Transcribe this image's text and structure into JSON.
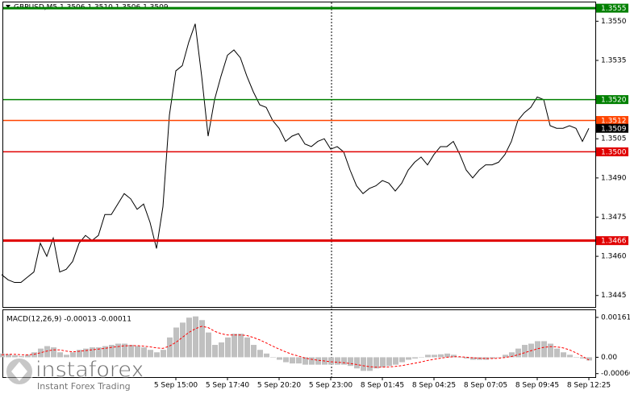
{
  "chart_data": [
    {
      "type": "line",
      "title": "GBPUSD,M5  1.3506 1.3510 1.3506 1.3509",
      "color": "#000000",
      "categories": [
        null,
        null,
        null,
        null,
        null,
        null,
        null,
        null,
        null,
        null,
        null,
        null,
        null,
        null,
        null,
        null,
        null,
        null,
        null,
        null,
        null,
        null,
        null,
        null,
        null,
        null,
        null,
        "5 Sep 15:00",
        null,
        null,
        null,
        null,
        null,
        null,
        null,
        "5 Sep 17:40",
        null,
        null,
        null,
        null,
        null,
        null,
        null,
        "5 Sep 20:20",
        null,
        null,
        null,
        null,
        null,
        null,
        null,
        "5 Sep 23:00",
        null,
        null,
        null,
        null,
        null,
        null,
        null,
        "8 Sep 01:45",
        null,
        null,
        null,
        null,
        null,
        null,
        null,
        "8 Sep 04:25",
        null,
        null,
        null,
        null,
        null,
        null,
        null,
        "8 Sep 07:05",
        null,
        null,
        null,
        null,
        null,
        null,
        null,
        "8 Sep 09:45",
        null,
        null,
        null,
        null,
        null,
        null,
        null,
        "8 Sep 12:25"
      ],
      "values": [
        1.3453,
        1.3451,
        1.345,
        1.345,
        1.3452,
        1.3454,
        1.3465,
        1.346,
        1.3467,
        1.3454,
        1.3455,
        1.3458,
        1.3465,
        1.3468,
        1.3466,
        1.3468,
        1.3476,
        1.3476,
        1.348,
        1.3484,
        1.3482,
        1.3478,
        1.348,
        1.3473,
        1.3463,
        1.3479,
        1.3514,
        1.3531,
        1.3533,
        1.3542,
        1.3549,
        1.3529,
        1.3506,
        1.352,
        1.3529,
        1.3537,
        1.3539,
        1.3536,
        1.3529,
        1.3523,
        1.3518,
        1.3517,
        1.3512,
        1.3509,
        1.3504,
        1.3506,
        1.3507,
        1.3503,
        1.3502,
        1.3504,
        1.3505,
        1.3501,
        1.3502,
        1.35,
        1.3493,
        1.3487,
        1.3484,
        1.3486,
        1.3487,
        1.3489,
        1.3488,
        1.3485,
        1.3488,
        1.3493,
        1.3496,
        1.3498,
        1.3495,
        1.3499,
        1.3502,
        1.3502,
        1.3504,
        1.3499,
        1.3493,
        1.349,
        1.3493,
        1.3495,
        1.3495,
        1.3496,
        1.3499,
        1.3504,
        1.3512,
        1.3515,
        1.3517,
        1.3521,
        1.352,
        1.351,
        1.3509,
        1.3509,
        1.351,
        1.3509,
        1.3504,
        1.3509
      ],
      "ylim": [
        1.34406,
        1.35572
      ],
      "yticks": [
        {
          "value": 1.355,
          "label": "1.3550"
        },
        1.3535,
        1.3505,
        {
          "value": 1.349,
          "label": "1.3490"
        },
        1.3475,
        {
          "value": 1.346,
          "label": "1.3460"
        },
        1.3445
      ],
      "levels": [
        {
          "value": 1.3555,
          "label": "1.3555",
          "color": "#008000",
          "thick": true,
          "line": true
        },
        {
          "value": 1.352,
          "label": "1.3520",
          "color": "#008000",
          "thick": false,
          "line": true
        },
        {
          "value": 1.3512,
          "label": "1.3512",
          "color": "#ff4500",
          "thick": false,
          "line": true
        },
        {
          "value": 1.3509,
          "label": "1.3509",
          "color": "#000000",
          "thick": false,
          "line": false
        },
        {
          "value": 1.35,
          "label": "1.3500",
          "color": "#e00000",
          "thick": false,
          "line": true
        },
        {
          "value": 1.3466,
          "label": "1.3466",
          "color": "#e00000",
          "thick": true,
          "line": true
        }
      ],
      "watermark": {
        "brand": "instaforex",
        "tagline": "Instant Forex Trading"
      }
    },
    {
      "type": "bar",
      "title": "MACD(12,26,9) -0.00013 -0.00011",
      "color": "#c0c0c0",
      "values": [
        0.00015,
        0.00012,
        8e-05,
        5e-05,
        0.0001,
        0.0002,
        0.00035,
        0.00045,
        0.0004,
        0.0002,
        0.0001,
        0.0002,
        0.0003,
        0.00035,
        0.0004,
        0.0004,
        0.00045,
        0.0005,
        0.00055,
        0.00055,
        0.0005,
        0.00045,
        0.0004,
        0.0003,
        0.0002,
        0.0003,
        0.0008,
        0.0012,
        0.0014,
        0.0016,
        0.00165,
        0.0015,
        0.001,
        0.0005,
        0.0006,
        0.0008,
        0.00095,
        0.00095,
        0.0008,
        0.0005,
        0.0003,
        0.00015,
        0,
        -0.0001,
        -0.0002,
        -0.00025,
        -0.00025,
        -0.0003,
        -0.0003,
        -0.0003,
        -0.0003,
        -0.0003,
        -0.0003,
        -0.0003,
        -0.00035,
        -0.00045,
        -0.00055,
        -0.00055,
        -0.00045,
        -0.0004,
        -0.00035,
        -0.0003,
        -0.0002,
        -0.0001,
        -5e-05,
        0,
        0.0001,
        0.0001,
        0.00012,
        0.00015,
        0.0001,
        0,
        -5e-05,
        -0.0001,
        -0.0001,
        -0.0001,
        -5e-05,
        0,
        0.0001,
        0.0002,
        0.00035,
        0.0005,
        0.00055,
        0.00065,
        0.00065,
        0.00055,
        0.00035,
        0.0002,
        0.0001,
        0,
        -5e-05,
        -0.00013
      ],
      "signal": {
        "color": "#ff0000",
        "values": [
          0.0001,
          0.00012,
          0.00012,
          0.0001,
          0.0001,
          0.00012,
          0.00018,
          0.00025,
          0.0003,
          0.0003,
          0.00025,
          0.00022,
          0.00024,
          0.00027,
          0.0003,
          0.00033,
          0.00036,
          0.0004,
          0.00043,
          0.00046,
          0.00047,
          0.00047,
          0.00045,
          0.00042,
          0.00038,
          0.00036,
          0.00045,
          0.0006,
          0.0008,
          0.001,
          0.00115,
          0.00125,
          0.0012,
          0.00105,
          0.00095,
          0.0009,
          0.0009,
          0.0009,
          0.00088,
          0.0008,
          0.0007,
          0.00058,
          0.00045,
          0.00033,
          0.00022,
          0.00012,
          5e-05,
          -3e-05,
          -8e-05,
          -0.00012,
          -0.00015,
          -0.00018,
          -0.0002,
          -0.00022,
          -0.00025,
          -0.00029,
          -0.00034,
          -0.00038,
          -0.0004,
          -0.0004,
          -0.00039,
          -0.00037,
          -0.00034,
          -0.00029,
          -0.00024,
          -0.00019,
          -0.00013,
          -8e-05,
          -4e-05,
          0,
          2e-05,
          2e-05,
          0,
          -2e-05,
          -4e-05,
          -5e-05,
          -5e-05,
          -4e-05,
          -1e-05,
          3e-05,
          0.0001,
          0.00018,
          0.00026,
          0.00034,
          0.0004,
          0.00043,
          0.00042,
          0.00038,
          0.0003,
          0.00018,
          4e-05,
          -0.00011
        ]
      },
      "ylim": [
        -0.0008,
        0.0019
      ],
      "yticks": [
        0.00161,
        {
          "value": 0,
          "label": "0.00"
        },
        -0.00066
      ]
    }
  ]
}
